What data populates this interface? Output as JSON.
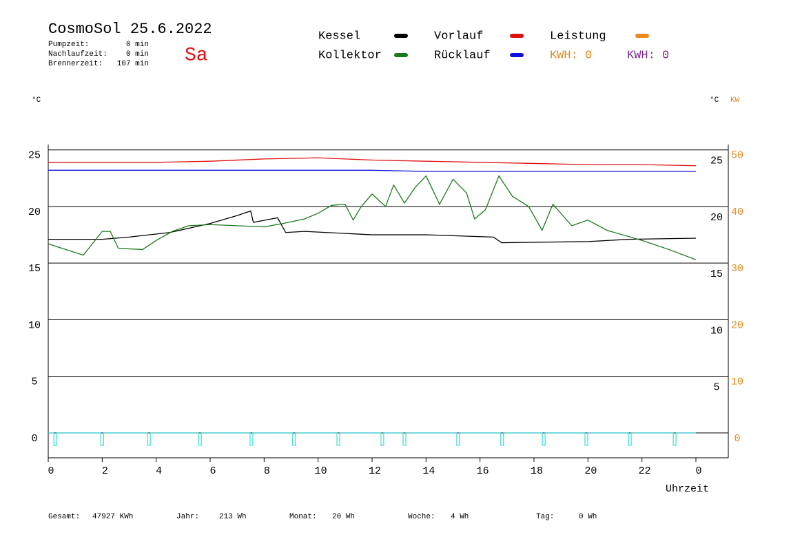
{
  "chart_data": {
    "type": "line",
    "title": "CosmoSol 25.6.2022",
    "day": "Sa",
    "stats": [
      {
        "label": "Pumpzeit:",
        "value": "0 min"
      },
      {
        "label": "Nachlaufzeit:",
        "value": "0 min"
      },
      {
        "label": "Brennerzeit:",
        "value": "107 min"
      }
    ],
    "kwh": [
      {
        "label": "KWH: 0",
        "color": "#e08a1e"
      },
      {
        "label": "KWH: 0",
        "color": "#7a2a8a"
      }
    ],
    "y_label": "°C",
    "y2_label": "°C",
    "y3_label": "KW",
    "x_label": "Uhrzeit",
    "xlim": [
      0,
      25.2
    ],
    "xticks": [
      0,
      2,
      4,
      6,
      8,
      10,
      12,
      14,
      16,
      18,
      20,
      22,
      {
        "value": 24,
        "label": "0"
      }
    ],
    "ylim": [
      -2.2,
      25.5
    ],
    "yticks": [
      0,
      5,
      10,
      15,
      20,
      25
    ],
    "y2ticks": [
      5,
      10,
      15,
      20,
      25
    ],
    "y3lim": [
      -4.4,
      51
    ],
    "y3ticks": [
      0,
      10,
      20,
      30,
      40,
      50
    ],
    "grid": true,
    "series": [
      {
        "name": "Kessel",
        "color": "#000000",
        "x": [
          0,
          2,
          3,
          4.5,
          6,
          7,
          7.5,
          7.6,
          8.5,
          8.8,
          9.5,
          12,
          14,
          16.5,
          16.8,
          20,
          21.5,
          24
        ],
        "values": [
          17.1,
          17.1,
          17.3,
          17.7,
          18.5,
          19.2,
          19.6,
          18.6,
          19.0,
          17.7,
          17.8,
          17.5,
          17.5,
          17.3,
          16.8,
          16.9,
          17.1,
          17.2
        ]
      },
      {
        "name": "Kollektor",
        "color": "#1a7a1a",
        "x": [
          0,
          1.3,
          2,
          2.3,
          2.6,
          3.5,
          4,
          4.6,
          5.2,
          6,
          8,
          8.7,
          9.5,
          10,
          10.5,
          11,
          11.3,
          11.6,
          12,
          12.5,
          12.8,
          13.2,
          13.6,
          14,
          14.5,
          15,
          15.5,
          15.8,
          16.2,
          16.7,
          17.2,
          17.8,
          18.3,
          18.7,
          19.4,
          20,
          20.7,
          22,
          23,
          24
        ],
        "values": [
          16.7,
          15.7,
          17.8,
          17.8,
          16.3,
          16.2,
          17.0,
          17.8,
          18.3,
          18.4,
          18.2,
          18.5,
          18.9,
          19.4,
          20.1,
          20.2,
          18.8,
          20.0,
          21.1,
          20.0,
          21.9,
          20.3,
          21.7,
          22.7,
          20.2,
          22.4,
          21.2,
          18.9,
          19.7,
          22.7,
          20.9,
          20.0,
          17.9,
          20.2,
          18.3,
          18.8,
          17.9,
          17.0,
          16.2,
          15.3
        ]
      },
      {
        "name": "Vorlauf",
        "color": "#e01010",
        "x": [
          0,
          2,
          4,
          6,
          8,
          10,
          12,
          14,
          16,
          18,
          20,
          22,
          24
        ],
        "values": [
          23.9,
          23.9,
          23.9,
          24.0,
          24.2,
          24.3,
          24.1,
          24.0,
          23.9,
          23.8,
          23.7,
          23.7,
          23.6
        ]
      },
      {
        "name": "Rücklauf",
        "color": "#1010e0",
        "x": [
          0,
          4,
          8,
          12,
          14,
          16,
          20,
          24
        ],
        "values": [
          23.2,
          23.2,
          23.2,
          23.2,
          23.1,
          23.1,
          23.1,
          23.1
        ]
      },
      {
        "name": "Leistung",
        "color": "#f08a1e",
        "axis": "y3",
        "x": [],
        "values": []
      }
    ],
    "pump": {
      "color": "#30e0e0",
      "x": [
        0.26,
        2.0,
        3.73,
        5.62,
        7.53,
        9.11,
        10.75,
        12.38,
        13.2,
        15.19,
        16.82,
        18.36,
        19.94,
        21.55,
        23.21
      ]
    },
    "footer": [
      {
        "label": "Gesamt:",
        "value": "47927 KWh"
      },
      {
        "label": "Jahr:",
        "value": "213 Wh"
      },
      {
        "label": "Monat:",
        "value": "20 Wh"
      },
      {
        "label": "Woche:",
        "value": "4 Wh"
      },
      {
        "label": "Tag:",
        "value": "0 Wh"
      }
    ]
  }
}
